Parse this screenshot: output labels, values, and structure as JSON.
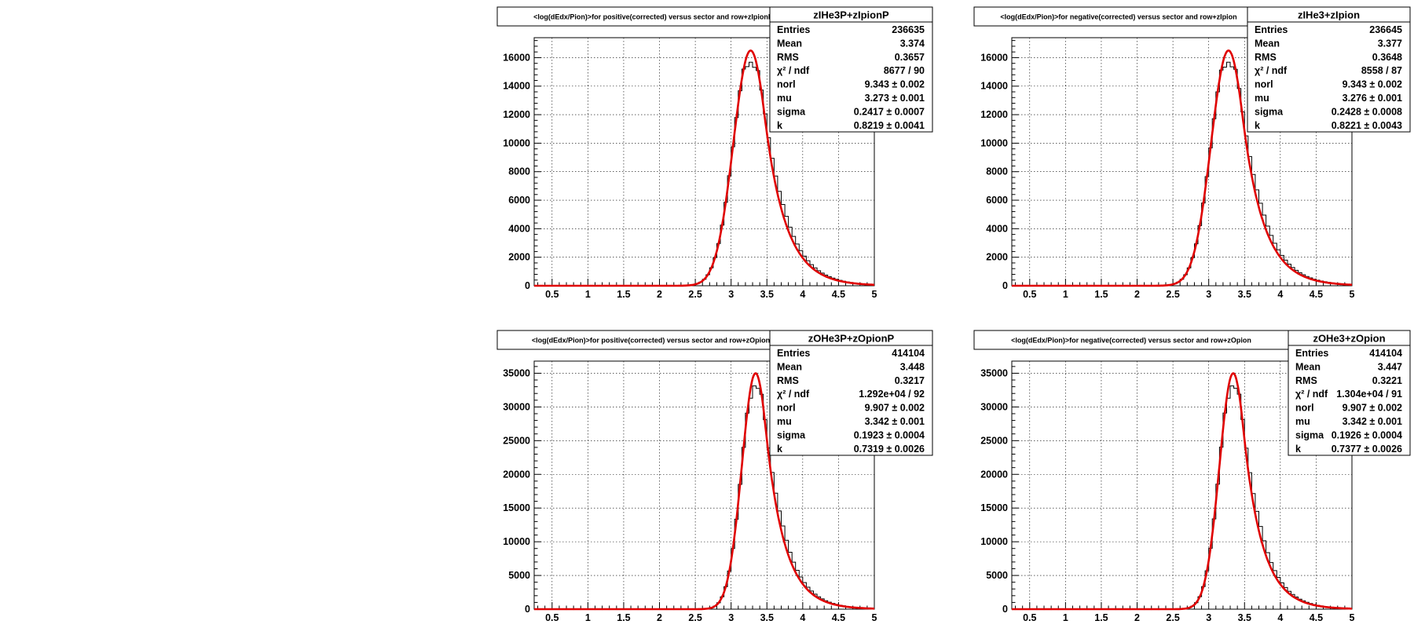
{
  "chart_data": [
    {
      "type": "histogram-with-fit",
      "title": "<log(dEdx/Pion)>for positive(corrected) versus sector and row+zIpionP",
      "stats": {
        "name": "zIHe3P+zIpionP",
        "rows": [
          {
            "label": "Entries",
            "value": "236635"
          },
          {
            "label": "Mean",
            "value": "3.374"
          },
          {
            "label": "RMS",
            "value": "0.3657"
          },
          {
            "label": "χ² / ndf",
            "value": "8677 / 90"
          },
          {
            "label": "norl",
            "value": "9.343 ± 0.002"
          },
          {
            "label": "mu",
            "value": "3.273 ± 0.001"
          },
          {
            "label": "sigma",
            "value": "0.2417 ± 0.0007"
          },
          {
            "label": "k",
            "value": "0.8219 ± 0.0041"
          }
        ]
      },
      "xlim": [
        0.25,
        5
      ],
      "ylim": [
        0,
        17400
      ],
      "x_ticks": [
        0.5,
        1,
        1.5,
        2,
        2.5,
        3,
        3.5,
        4,
        4.5,
        5
      ],
      "y_ticks": [
        0,
        2000,
        4000,
        6000,
        8000,
        10000,
        12000,
        14000,
        16000
      ],
      "fit": {
        "mu": 3.273,
        "sigma": 0.2417,
        "k": 0.8219,
        "peak": 16500
      },
      "grid": true
    },
    {
      "type": "histogram-with-fit",
      "title": "<log(dEdx/Pion)>for negative(corrected) versus sector and row+zIpion",
      "stats": {
        "name": "zIHe3+zIpion",
        "rows": [
          {
            "label": "Entries",
            "value": "236645"
          },
          {
            "label": "Mean",
            "value": "3.377"
          },
          {
            "label": "RMS",
            "value": "0.3648"
          },
          {
            "label": "χ² / ndf",
            "value": "8558 / 87"
          },
          {
            "label": "norl",
            "value": "9.343 ± 0.002"
          },
          {
            "label": "mu",
            "value": "3.276 ± 0.001"
          },
          {
            "label": "sigma",
            "value": "0.2428 ± 0.0008"
          },
          {
            "label": "k",
            "value": "0.8221 ± 0.0043"
          }
        ]
      },
      "xlim": [
        0.25,
        5
      ],
      "ylim": [
        0,
        17400
      ],
      "x_ticks": [
        0.5,
        1,
        1.5,
        2,
        2.5,
        3,
        3.5,
        4,
        4.5,
        5
      ],
      "y_ticks": [
        0,
        2000,
        4000,
        6000,
        8000,
        10000,
        12000,
        14000,
        16000
      ],
      "fit": {
        "mu": 3.276,
        "sigma": 0.2428,
        "k": 0.8221,
        "peak": 16500
      },
      "grid": true
    },
    {
      "type": "histogram-with-fit",
      "title": "<log(dEdx/Pion)>for positive(corrected) versus sector and row+zOpionP",
      "stats": {
        "name": "zOHe3P+zOpionP",
        "rows": [
          {
            "label": "Entries",
            "value": "414104"
          },
          {
            "label": "Mean",
            "value": "3.448"
          },
          {
            "label": "RMS",
            "value": "0.3217"
          },
          {
            "label": "χ² / ndf",
            "value": "1.292e+04 / 92"
          },
          {
            "label": "norl",
            "value": "9.907 ± 0.002"
          },
          {
            "label": "mu",
            "value": "3.342 ± 0.001"
          },
          {
            "label": "sigma",
            "value": "0.1923 ± 0.0004"
          },
          {
            "label": "k",
            "value": "0.7319 ± 0.0026"
          }
        ]
      },
      "xlim": [
        0.25,
        5
      ],
      "ylim": [
        0,
        36800
      ],
      "x_ticks": [
        0.5,
        1,
        1.5,
        2,
        2.5,
        3,
        3.5,
        4,
        4.5,
        5
      ],
      "y_ticks": [
        0,
        5000,
        10000,
        15000,
        20000,
        25000,
        30000,
        35000
      ],
      "fit": {
        "mu": 3.342,
        "sigma": 0.1923,
        "k": 0.7319,
        "peak": 35000
      },
      "grid": true
    },
    {
      "type": "histogram-with-fit",
      "title": "<log(dEdx/Pion)>for negative(corrected) versus sector and row+zOpion",
      "stats": {
        "name": "zOHe3+zOpion",
        "rows": [
          {
            "label": "Entries",
            "value": "414104"
          },
          {
            "label": "Mean",
            "value": "3.447"
          },
          {
            "label": "RMS",
            "value": "0.3221"
          },
          {
            "label": "χ² / ndf",
            "value": "1.304e+04 / 91"
          },
          {
            "label": "norl",
            "value": "9.907 ± 0.002"
          },
          {
            "label": "mu",
            "value": "3.342 ± 0.001"
          },
          {
            "label": "sigma",
            "value": "0.1926 ± 0.0004"
          },
          {
            "label": "k",
            "value": "0.7377 ± 0.0026"
          }
        ]
      },
      "xlim": [
        0.25,
        5
      ],
      "ylim": [
        0,
        36800
      ],
      "x_ticks": [
        0.5,
        1,
        1.5,
        2,
        2.5,
        3,
        3.5,
        4,
        4.5,
        5
      ],
      "y_ticks": [
        0,
        5000,
        10000,
        15000,
        20000,
        25000,
        30000,
        35000
      ],
      "fit": {
        "mu": 3.342,
        "sigma": 0.1926,
        "k": 0.7377,
        "peak": 35000
      },
      "grid": true
    }
  ],
  "colors": {
    "fit_line": "#e00000",
    "histogram": "#000000",
    "grid": "#000000",
    "background": "#ffffff"
  }
}
